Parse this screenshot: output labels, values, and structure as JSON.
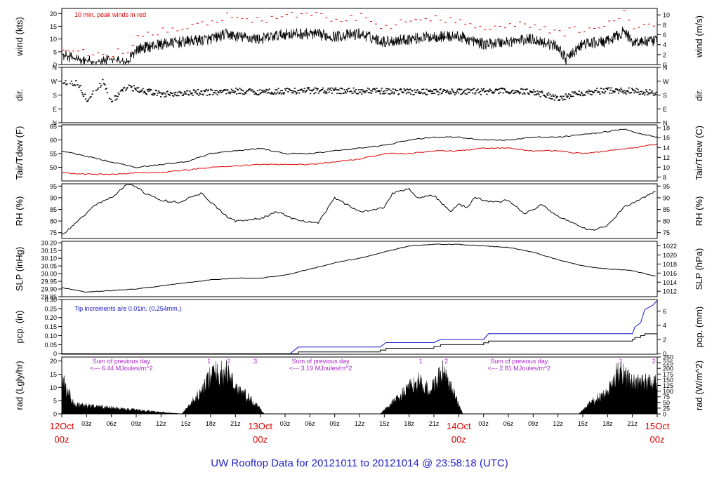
{
  "title": "UW Rooftop Data for 20121011  to  20121014 @ 23:58:18  (UTC)",
  "colors": {
    "axis": "#000000",
    "red": "#dd0000",
    "blue": "#1111cc",
    "purple": "#aa22cc",
    "title": "#2222cc"
  },
  "x_axis": {
    "ticks": [
      {
        "pos": 0,
        "label": "12Oct",
        "sub": "00z",
        "major": true
      },
      {
        "pos": 3,
        "label": "03z"
      },
      {
        "pos": 6,
        "label": "06z"
      },
      {
        "pos": 9,
        "label": "09z"
      },
      {
        "pos": 12,
        "label": "12z"
      },
      {
        "pos": 15,
        "label": "15z"
      },
      {
        "pos": 18,
        "label": "18z"
      },
      {
        "pos": 21,
        "label": "21z"
      },
      {
        "pos": 24,
        "label": "13Oct",
        "sub": "00z",
        "major": true
      },
      {
        "pos": 27,
        "label": "03z"
      },
      {
        "pos": 30,
        "label": "06z"
      },
      {
        "pos": 33,
        "label": "09z"
      },
      {
        "pos": 36,
        "label": "12z"
      },
      {
        "pos": 39,
        "label": "15z"
      },
      {
        "pos": 42,
        "label": "18z"
      },
      {
        "pos": 45,
        "label": "21z"
      },
      {
        "pos": 48,
        "label": "14Oct",
        "sub": "00z",
        "major": true
      },
      {
        "pos": 51,
        "label": "03z"
      },
      {
        "pos": 54,
        "label": "06z"
      },
      {
        "pos": 57,
        "label": "09z"
      },
      {
        "pos": 60,
        "label": "12z"
      },
      {
        "pos": 63,
        "label": "15z"
      },
      {
        "pos": 66,
        "label": "18z"
      },
      {
        "pos": 69,
        "label": "21z"
      },
      {
        "pos": 72,
        "label": "15Oct",
        "sub": "00z",
        "major": true
      }
    ],
    "range_hours": [
      0,
      72
    ]
  },
  "panels": [
    {
      "id": "wind",
      "left_label": "wind (kts)",
      "right_label": "wind (m/s)",
      "left_ticks": [
        "0",
        "5",
        "10",
        "15",
        "20"
      ],
      "left_vals": [
        0,
        5,
        10,
        15,
        20
      ],
      "ylim": [
        0,
        22
      ],
      "right_ticks": [
        "0",
        "2",
        "4",
        "6",
        "8",
        "10"
      ],
      "right_vals": [
        0,
        2,
        4,
        6,
        8,
        10
      ],
      "right_lim": [
        0,
        11.3
      ],
      "annotation": "10 min. peak winds in red"
    },
    {
      "id": "dir",
      "left_label": "dir.",
      "right_label": "dir.",
      "left_ticks": [
        "N",
        "E",
        "S",
        "W",
        "N"
      ],
      "left_vals": [
        0,
        90,
        180,
        270,
        360
      ],
      "ylim": [
        0,
        360
      ],
      "right_ticks": [
        "N",
        "E",
        "S",
        "W",
        "N"
      ],
      "right_vals": [
        0,
        90,
        180,
        270,
        360
      ],
      "right_lim": [
        0,
        360
      ]
    },
    {
      "id": "temp",
      "left_label": "Tair/Tdew (F)",
      "right_label": "Tair/Tdew (C)",
      "left_ticks": [
        "50",
        "55",
        "60",
        "65"
      ],
      "left_vals": [
        50,
        55,
        60,
        65
      ],
      "ylim": [
        45,
        65.5
      ],
      "right_ticks": [
        "8",
        "10",
        "12",
        "14",
        "16",
        "18"
      ],
      "right_vals": [
        8,
        10,
        12,
        14,
        16,
        18
      ],
      "right_lim": [
        7.2,
        18.6
      ]
    },
    {
      "id": "rh",
      "left_label": "RH (%)",
      "right_label": "RH (%)",
      "left_ticks": [
        "75",
        "80",
        "85",
        "90",
        "95"
      ],
      "left_vals": [
        75,
        80,
        85,
        90,
        95
      ],
      "ylim": [
        72.5,
        96
      ],
      "right_ticks": [
        "75",
        "80",
        "85",
        "90",
        "95"
      ],
      "right_vals": [
        75,
        80,
        85,
        90,
        95
      ],
      "right_lim": [
        72.5,
        96
      ]
    },
    {
      "id": "slp",
      "left_label": "SLP (inHg)",
      "right_label": "SLP (hPa)",
      "left_ticks": [
        "29.85",
        "29.90",
        "29.95",
        "30.00",
        "30.05",
        "30.10",
        "30.15",
        "30.20"
      ],
      "left_vals": [
        29.85,
        29.9,
        29.95,
        30.0,
        30.05,
        30.1,
        30.15,
        30.2
      ],
      "ylim": [
        29.85,
        30.21
      ],
      "right_ticks": [
        "1012",
        "1014",
        "1016",
        "1018",
        "1020",
        "1022"
      ],
      "right_vals": [
        1012,
        1014,
        1016,
        1018,
        1020,
        1022
      ],
      "right_lim": [
        1010.8,
        1023.0
      ]
    },
    {
      "id": "pcp",
      "left_label": "pcp. (in)",
      "right_label": "pcp. (mm)",
      "left_ticks": [
        "0",
        "0.05",
        "0.10",
        "0.15",
        "0.20",
        "0.25",
        "0.30"
      ],
      "left_vals": [
        0,
        0.05,
        0.1,
        0.15,
        0.2,
        0.25,
        0.3
      ],
      "ylim": [
        -0.003,
        0.3
      ],
      "right_ticks": [
        "0",
        "2",
        "4",
        "6"
      ],
      "right_vals": [
        0,
        2,
        4,
        6
      ],
      "right_lim": [
        -0.08,
        7.62
      ],
      "annotation": "Tip increments are 0.01in. (0.254mm.)"
    },
    {
      "id": "rad",
      "left_label": "rad (Lgly/hr)",
      "right_label": "rad (W/m^2)",
      "left_ticks": [
        "0",
        "5",
        "10",
        "15",
        "20"
      ],
      "left_vals": [
        0,
        5,
        10,
        15,
        20
      ],
      "ylim": [
        0,
        21.5
      ],
      "right_ticks": [
        "0",
        "25",
        "50",
        "75",
        "100",
        "125",
        "150",
        "175",
        "200",
        "225",
        "250"
      ],
      "right_vals": [
        0,
        25,
        50,
        75,
        100,
        125,
        150,
        175,
        200,
        225,
        250
      ],
      "right_lim": [
        0,
        250
      ]
    }
  ],
  "rad_notes": [
    {
      "line1": "Sum of previous day",
      "line2": "<--- 6.44 MJoules/m^2",
      "center_hour": 7.2
    },
    {
      "line1": "Sum of previous day",
      "line2": "<--- 3.19 MJoules/m^2",
      "center_hour": 31.3
    },
    {
      "line1": "Sum of previous day",
      "line2": "<--- 2.81 MJoules/m^2",
      "center_hour": 55.3
    }
  ],
  "rad_markers": [
    {
      "hour": 17.8,
      "label": "1"
    },
    {
      "hour": 20.2,
      "label": "2"
    },
    {
      "hour": 23.4,
      "label": "3"
    },
    {
      "hour": 43.4,
      "label": "1"
    },
    {
      "hour": 46.5,
      "label": "2"
    },
    {
      "hour": 67.6,
      "label": "1"
    },
    {
      "hour": 71.6,
      "label": "2"
    }
  ],
  "chart_data": {
    "type": "line",
    "title": "UW Rooftop Data for 20121011  to  20121014 @ 23:58:18  (UTC)",
    "x_units": "hours since 12Oct 00z",
    "series": [
      {
        "name": "wind speed (kts)",
        "x": [
          0,
          2,
          4,
          6,
          8,
          9,
          12,
          15,
          18,
          20,
          21,
          24,
          27,
          30,
          33,
          36,
          39,
          42,
          45,
          48,
          51,
          54,
          57,
          60,
          61,
          63,
          66,
          68,
          69,
          72
        ],
        "values": [
          4,
          2,
          1,
          2,
          1,
          6,
          8,
          9,
          10,
          12,
          11,
          10,
          12,
          12,
          11,
          12,
          9,
          10,
          11,
          11,
          8,
          9,
          10,
          7,
          2,
          8,
          9,
          13,
          9,
          9
        ]
      },
      {
        "name": "10 min peak wind (kts, red)",
        "x": [
          0,
          4,
          8,
          9,
          12,
          15,
          18,
          20,
          21,
          24,
          27,
          30,
          33,
          36,
          39,
          42,
          45,
          48,
          51,
          54,
          57,
          60,
          63,
          66,
          68,
          69,
          72
        ],
        "values": [
          6,
          4,
          5,
          10,
          13,
          14,
          17,
          19,
          18,
          17,
          19,
          20,
          17,
          19,
          15,
          17,
          18,
          17,
          15,
          15,
          16,
          12,
          14,
          16,
          20,
          15,
          15
        ]
      },
      {
        "name": "wind dir (deg)",
        "x": [
          0,
          2,
          3,
          5,
          6,
          8,
          10,
          12,
          15,
          18,
          21,
          24,
          27,
          30,
          36,
          42,
          48,
          54,
          57,
          60,
          63,
          66,
          69,
          72
        ],
        "values": [
          270,
          255,
          150,
          265,
          140,
          230,
          205,
          185,
          190,
          198,
          205,
          200,
          205,
          208,
          205,
          202,
          200,
          205,
          200,
          160,
          195,
          210,
          205,
          190
        ]
      },
      {
        "name": "Tair (F)",
        "x": [
          0,
          3,
          6,
          9,
          12,
          15,
          18,
          21,
          24,
          27,
          30,
          33,
          36,
          39,
          42,
          45,
          48,
          51,
          54,
          57,
          60,
          63,
          66,
          68,
          69,
          72
        ],
        "values": [
          56,
          54,
          52,
          50,
          51,
          52,
          55,
          56,
          57,
          55,
          55,
          56,
          57,
          58,
          60,
          61,
          61,
          60,
          60,
          61,
          61,
          62,
          63,
          64,
          63,
          61
        ]
      },
      {
        "name": "Tdew (F, red)",
        "x": [
          0,
          3,
          6,
          9,
          12,
          15,
          18,
          21,
          24,
          27,
          30,
          33,
          36,
          39,
          42,
          45,
          48,
          51,
          54,
          57,
          60,
          63,
          66,
          69,
          72
        ],
        "values": [
          48,
          47.5,
          47.5,
          48,
          48,
          49,
          50,
          50.5,
          51,
          51,
          51,
          52,
          53,
          55,
          55,
          56,
          56,
          57,
          57,
          56,
          56,
          55,
          56,
          57,
          58.5
        ]
      },
      {
        "name": "RH (%)",
        "x": [
          0,
          2,
          4,
          6,
          8,
          9,
          10,
          12,
          14,
          17,
          18,
          20,
          21,
          24,
          26,
          28,
          29,
          31,
          33,
          36,
          38,
          39,
          40,
          42,
          43,
          45,
          47,
          48,
          49,
          50,
          52,
          54,
          56,
          58,
          60,
          62,
          63,
          64,
          66,
          68,
          72
        ],
        "values": [
          74,
          80,
          87,
          90,
          96,
          95,
          92,
          89,
          88,
          92,
          88,
          82,
          80,
          81,
          84,
          81,
          80,
          79,
          90,
          84,
          85,
          86,
          92,
          94,
          90,
          91,
          84,
          87,
          86,
          90,
          88,
          89,
          83,
          87,
          82,
          79,
          77,
          76,
          78,
          86,
          93
        ]
      },
      {
        "name": "SLP (inHg)",
        "x": [
          0,
          3,
          6,
          9,
          12,
          15,
          18,
          21,
          24,
          27,
          30,
          33,
          36,
          39,
          42,
          45,
          48,
          51,
          54,
          57,
          60,
          63,
          66,
          69,
          72
        ],
        "values": [
          29.91,
          29.88,
          29.89,
          29.9,
          29.92,
          29.94,
          29.96,
          29.97,
          29.97,
          29.99,
          30.03,
          30.07,
          30.1,
          30.14,
          30.18,
          30.19,
          30.19,
          30.18,
          30.17,
          30.14,
          30.09,
          30.05,
          30.03,
          30.02,
          29.98
        ]
      },
      {
        "name": "Precip accum (in)",
        "x": [
          0,
          27.6,
          28.6,
          38.5,
          39.2,
          45,
          45.8,
          51,
          51.6,
          69,
          69.3,
          70,
          70.5,
          72
        ],
        "values": [
          0,
          0,
          0.01,
          0.02,
          0.03,
          0.04,
          0.05,
          0.06,
          0.07,
          0.08,
          0.09,
          0.1,
          0.11,
          0.12
        ]
      },
      {
        "name": "Radiation (Lgly/hr)",
        "x": [
          0,
          1.5,
          14.5,
          17,
          18,
          20,
          21,
          23.5,
          24.5,
          38.5,
          40,
          43,
          44.5,
          46,
          47.5,
          48.5,
          62.5,
          64,
          66,
          67.5,
          69,
          72
        ],
        "values": [
          15,
          4,
          0,
          10,
          17,
          18,
          12,
          4,
          0,
          0,
          5,
          14,
          10,
          18,
          8,
          0,
          0,
          5,
          9,
          20,
          13,
          14
        ]
      }
    ]
  }
}
